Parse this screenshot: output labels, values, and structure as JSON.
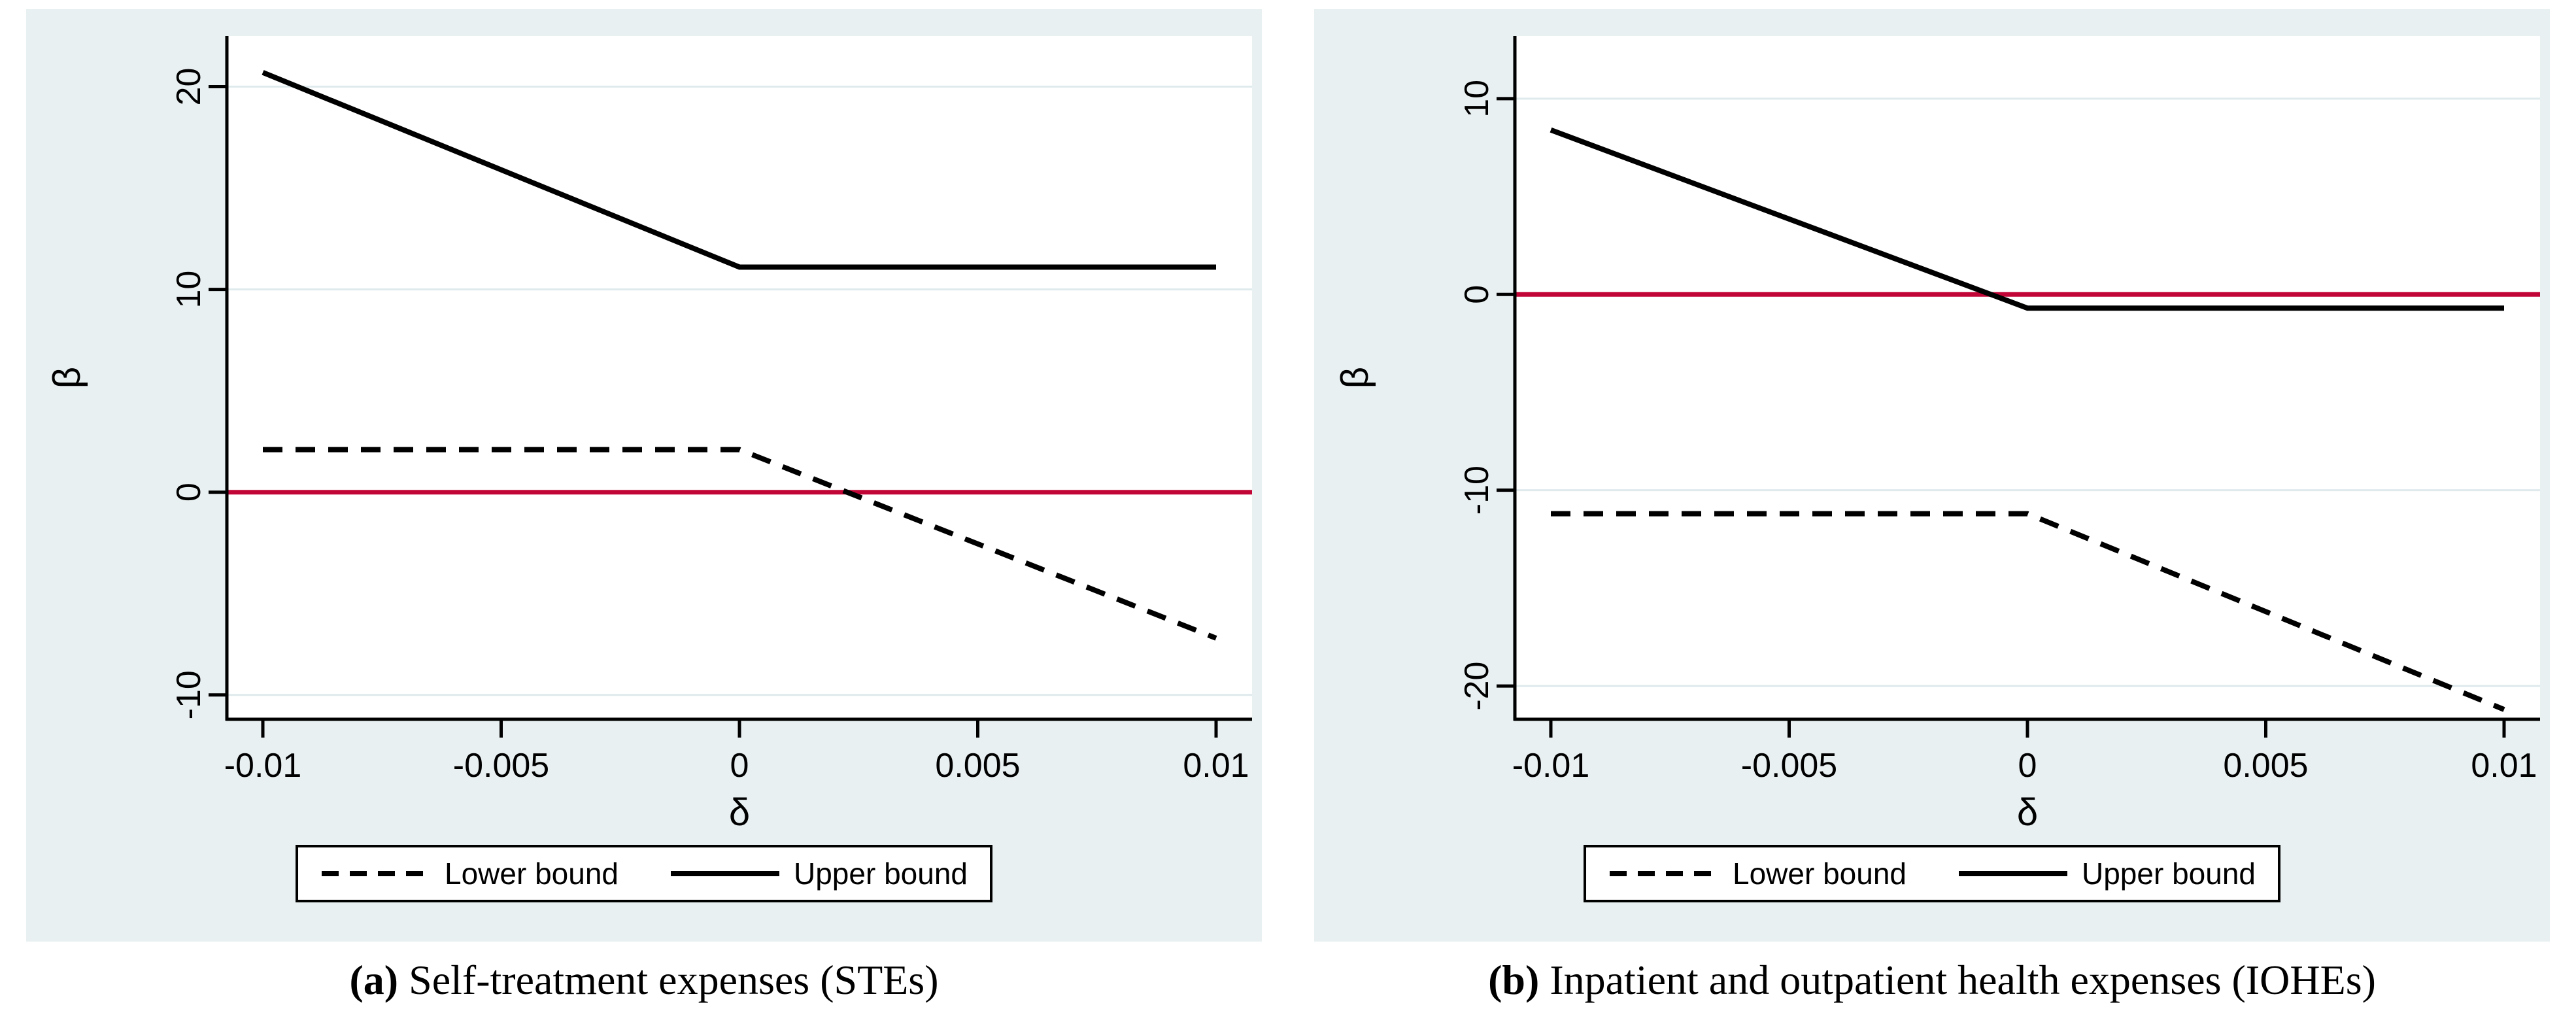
{
  "colors": {
    "panel_bg": "#e9f0f2",
    "plot_bg": "#ffffff",
    "grid": "#dfeaed",
    "axis": "#000000",
    "zero_line": "#c10536",
    "series": "#000000"
  },
  "figure": {
    "panels": [
      {
        "caption": {
          "open": "(",
          "letter": "a",
          "close": ")",
          "text": " Self-treatment expenses (STEs)"
        },
        "legend": {
          "lower": "Lower bound",
          "upper": "Upper bound"
        }
      },
      {
        "caption": {
          "open": "(",
          "letter": "b",
          "close": ")",
          "text": " Inpatient and outpatient health expenses (IOHEs)"
        },
        "legend": {
          "lower": "Lower bound",
          "upper": "Upper bound"
        }
      }
    ]
  },
  "chart_data": [
    {
      "type": "line",
      "title": "(a) Self-treatment expenses (STEs)",
      "xlabel": "δ",
      "ylabel": "β",
      "xlim": [
        -0.01,
        0.01
      ],
      "ylim": [
        -11.2,
        22.5
      ],
      "xticks": [
        -0.01,
        -0.005,
        0,
        0.005,
        0.01
      ],
      "yticks": [
        -10,
        0,
        10,
        20
      ],
      "grid": true,
      "legend_position": "bottom",
      "zero_line": 0,
      "series": [
        {
          "name": "Lower bound",
          "style": "dashed",
          "x": [
            -0.01,
            0,
            0.01
          ],
          "y": [
            2.1,
            2.1,
            -7.2
          ]
        },
        {
          "name": "Upper bound",
          "style": "solid",
          "x": [
            -0.01,
            0,
            0.01
          ],
          "y": [
            20.7,
            11.1,
            11.1
          ]
        }
      ]
    },
    {
      "type": "line",
      "title": "(b) Inpatient and outpatient health expenses (IOHEs)",
      "xlabel": "δ",
      "ylabel": "β",
      "xlim": [
        -0.01,
        0.01
      ],
      "ylim": [
        -21.7,
        13.2
      ],
      "xticks": [
        -0.01,
        -0.005,
        0,
        0.005,
        0.01
      ],
      "yticks": [
        -20,
        -10,
        0,
        10
      ],
      "grid": true,
      "legend_position": "bottom",
      "zero_line": 0,
      "series": [
        {
          "name": "Lower bound",
          "style": "dashed",
          "x": [
            -0.01,
            0,
            0.01
          ],
          "y": [
            -11.2,
            -11.2,
            -21.2
          ]
        },
        {
          "name": "Upper bound",
          "style": "solid",
          "x": [
            -0.01,
            0,
            0.01
          ],
          "y": [
            8.4,
            -0.7,
            -0.7
          ]
        }
      ]
    }
  ]
}
